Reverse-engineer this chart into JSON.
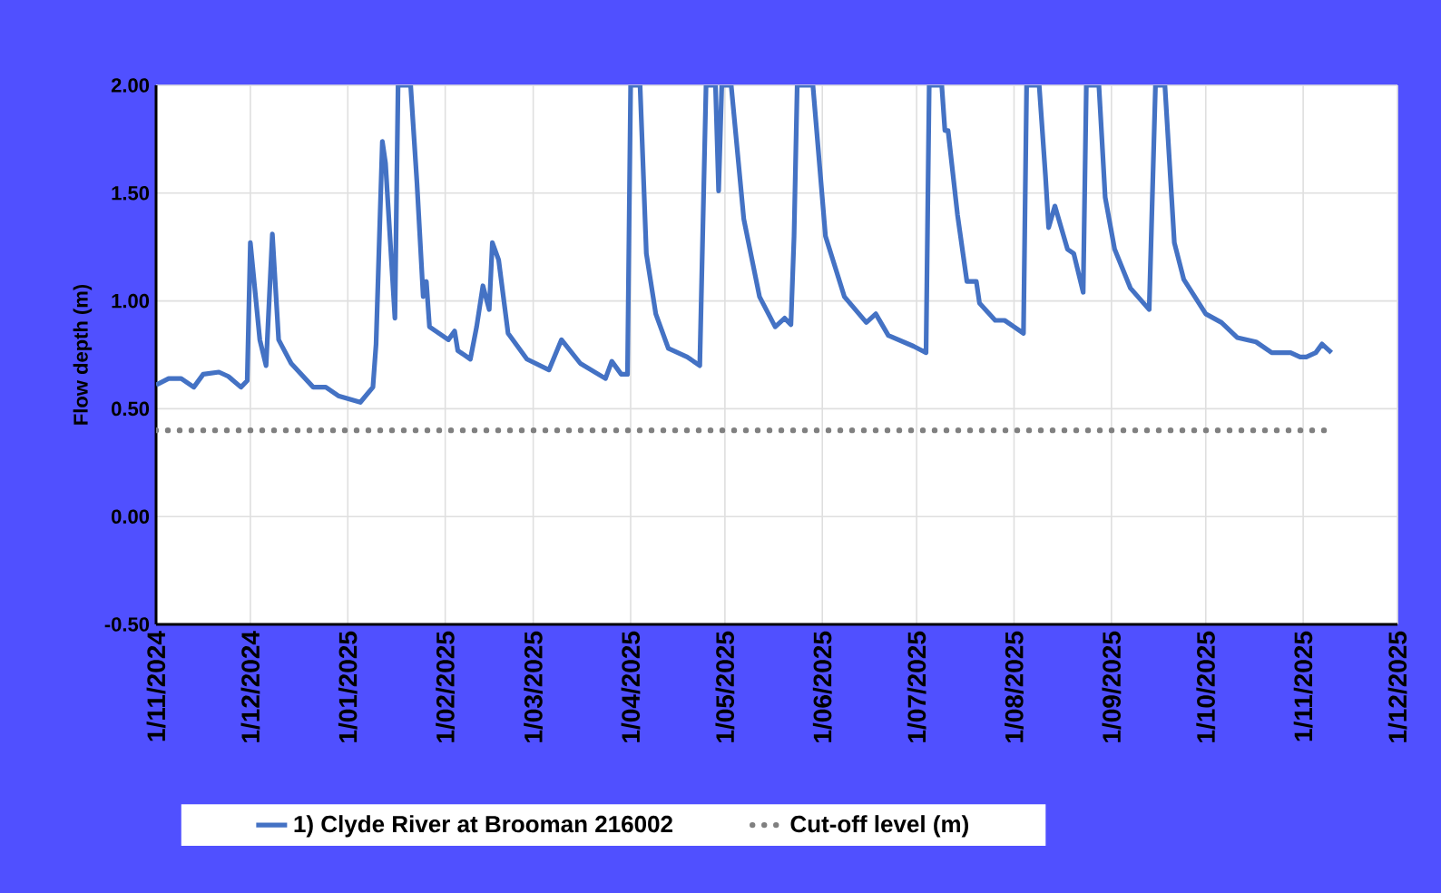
{
  "chart_data": {
    "type": "line",
    "ylabel": "Flow depth (m)",
    "xlim": [
      "2024-11-01",
      "2025-12-01"
    ],
    "xticks": [
      {
        "value": "2024-11-01",
        "label": "1/11/2024"
      },
      {
        "value": "2024-12-01",
        "label": "1/12/2024"
      },
      {
        "value": "2025-01-01",
        "label": "1/01/2025"
      },
      {
        "value": "2025-02-01",
        "label": "1/02/2025"
      },
      {
        "value": "2025-03-01",
        "label": "1/03/2025"
      },
      {
        "value": "2025-04-01",
        "label": "1/04/2025"
      },
      {
        "value": "2025-05-01",
        "label": "1/05/2025"
      },
      {
        "value": "2025-06-01",
        "label": "1/06/2025"
      },
      {
        "value": "2025-07-01",
        "label": "1/07/2025"
      },
      {
        "value": "2025-08-01",
        "label": "1/08/2025"
      },
      {
        "value": "2025-09-01",
        "label": "1/09/2025"
      },
      {
        "value": "2025-10-01",
        "label": "1/10/2025"
      },
      {
        "value": "2025-11-01",
        "label": "1/11/2025"
      },
      {
        "value": "2025-12-01",
        "label": "1/12/2025"
      }
    ],
    "ylim": [
      -0.5,
      2.0
    ],
    "yticks": [
      {
        "value": -0.5,
        "label": "-0.50"
      },
      {
        "value": 0,
        "label": "0.00"
      },
      {
        "value": 0.5,
        "label": "0.50"
      },
      {
        "value": 1.0,
        "label": "1.00"
      },
      {
        "value": 1.5,
        "label": "1.50"
      },
      {
        "value": 2.0,
        "label": "2.00"
      }
    ],
    "grid": true,
    "legend": "bottom",
    "series": [
      {
        "name": "1) Clyde River at Brooman 216002",
        "color": "#4472c4",
        "line_style": "solid",
        "x": [
          "2024-11-01",
          "2024-11-05",
          "2024-11-09",
          "2024-11-13",
          "2024-11-16",
          "2024-11-21",
          "2024-11-24",
          "2024-11-28",
          "2024-11-30",
          "2024-12-01",
          "2024-12-04",
          "2024-12-06",
          "2024-12-08",
          "2024-12-10",
          "2024-12-14",
          "2024-12-21",
          "2024-12-25",
          "2024-12-29",
          "2025-01-05",
          "2025-01-09",
          "2025-01-10",
          "2025-01-12",
          "2025-01-13",
          "2025-01-16",
          "2025-01-17",
          "2025-01-21",
          "2025-01-23",
          "2025-01-25",
          "2025-01-26",
          "2025-01-27",
          "2025-02-02",
          "2025-02-04",
          "2025-02-05",
          "2025-02-09",
          "2025-02-11",
          "2025-02-13",
          "2025-02-15",
          "2025-02-16",
          "2025-02-18",
          "2025-02-21",
          "2025-02-27",
          "2025-03-06",
          "2025-03-10",
          "2025-03-16",
          "2025-03-24",
          "2025-03-26",
          "2025-03-29",
          "2025-03-31",
          "2025-04-01",
          "2025-04-04",
          "2025-04-06",
          "2025-04-09",
          "2025-04-13",
          "2025-04-19",
          "2025-04-23",
          "2025-04-25",
          "2025-04-28",
          "2025-04-29",
          "2025-04-30",
          "2025-05-03",
          "2025-05-07",
          "2025-05-12",
          "2025-05-17",
          "2025-05-20",
          "2025-05-22",
          "2025-05-23",
          "2025-05-24",
          "2025-05-29",
          "2025-06-02",
          "2025-06-08",
          "2025-06-15",
          "2025-06-18",
          "2025-06-22",
          "2025-06-30",
          "2025-07-04",
          "2025-07-05",
          "2025-07-09",
          "2025-07-10",
          "2025-07-11",
          "2025-07-14",
          "2025-07-17",
          "2025-07-20",
          "2025-07-21",
          "2025-07-26",
          "2025-07-29",
          "2025-08-01",
          "2025-08-04",
          "2025-08-05",
          "2025-08-09",
          "2025-08-11",
          "2025-08-12",
          "2025-08-14",
          "2025-08-18",
          "2025-08-20",
          "2025-08-23",
          "2025-08-24",
          "2025-08-28",
          "2025-08-30",
          "2025-09-02",
          "2025-09-07",
          "2025-09-13",
          "2025-09-15",
          "2025-09-18",
          "2025-09-21",
          "2025-09-24",
          "2025-10-01",
          "2025-10-06",
          "2025-10-11",
          "2025-10-17",
          "2025-10-22",
          "2025-10-28",
          "2025-10-31",
          "2025-11-02",
          "2025-11-05",
          "2025-11-07",
          "2025-11-10"
        ],
        "values": [
          0.61,
          0.64,
          0.64,
          0.6,
          0.66,
          0.67,
          0.65,
          0.6,
          0.63,
          1.27,
          0.82,
          0.7,
          1.31,
          0.82,
          0.71,
          0.6,
          0.6,
          0.56,
          0.53,
          0.6,
          0.8,
          1.74,
          1.64,
          0.92,
          2.0,
          2.0,
          1.55,
          1.02,
          1.09,
          0.88,
          0.82,
          0.86,
          0.77,
          0.73,
          0.88,
          1.07,
          0.96,
          1.27,
          1.19,
          0.85,
          0.73,
          0.68,
          0.82,
          0.71,
          0.64,
          0.72,
          0.66,
          0.66,
          2.0,
          2.0,
          1.22,
          0.94,
          0.78,
          0.74,
          0.7,
          2.0,
          2.0,
          1.51,
          2.0,
          2.0,
          1.38,
          1.02,
          0.88,
          0.92,
          0.89,
          1.3,
          2.0,
          2.0,
          1.3,
          1.02,
          0.9,
          0.94,
          0.84,
          0.79,
          0.76,
          2.0,
          2.0,
          1.79,
          1.79,
          1.4,
          1.09,
          1.09,
          0.99,
          0.91,
          0.91,
          0.88,
          0.85,
          2.0,
          2.0,
          1.58,
          1.34,
          1.44,
          1.24,
          1.22,
          1.04,
          2.0,
          2.0,
          1.48,
          1.24,
          1.06,
          0.96,
          2.0,
          2.0,
          1.27,
          1.1,
          0.94,
          0.9,
          0.83,
          0.81,
          0.76,
          0.76,
          0.74,
          0.74,
          0.76,
          0.8,
          0.76
        ]
      },
      {
        "name": "Cut-off level (m)",
        "color": "#808080",
        "line_style": "dotted",
        "x": [
          "2024-11-01",
          "2025-11-10"
        ],
        "values": [
          0.4,
          0.4
        ]
      }
    ]
  }
}
